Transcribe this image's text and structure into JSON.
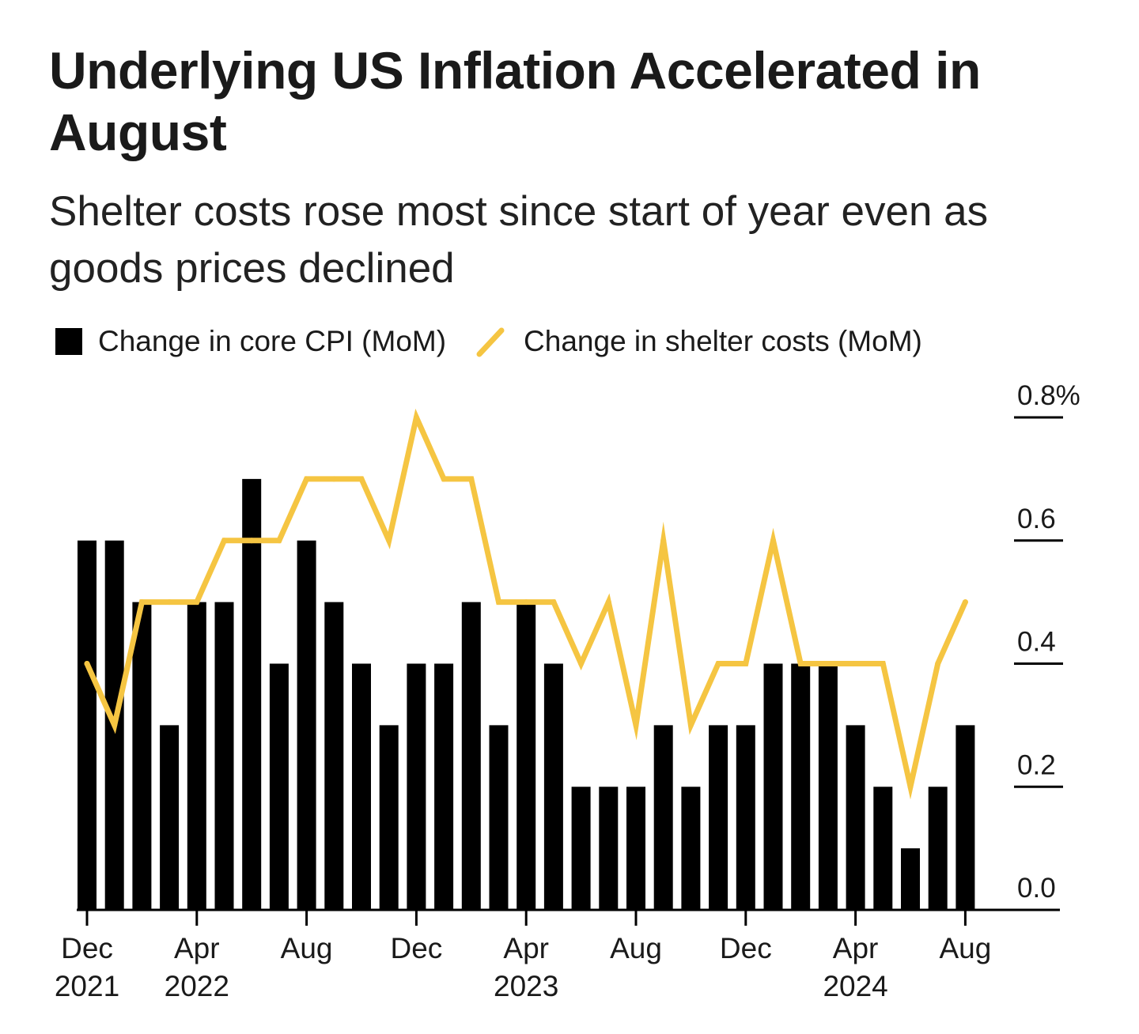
{
  "chart_data": {
    "type": "bar",
    "title": "Underlying US Inflation Accelerated in August",
    "subtitle": "Shelter costs rose most since start of year even as goods prices declined",
    "legend": [
      {
        "label": "Change in core CPI (MoM)",
        "color": "#000000",
        "kind": "bar"
      },
      {
        "label": "Change in shelter costs (MoM)",
        "color": "#f5c542",
        "kind": "line"
      }
    ],
    "categories": [
      "2021-12",
      "2022-01",
      "2022-02",
      "2022-03",
      "2022-04",
      "2022-05",
      "2022-06",
      "2022-07",
      "2022-08",
      "2022-09",
      "2022-10",
      "2022-11",
      "2022-12",
      "2023-01",
      "2023-02",
      "2023-03",
      "2023-04",
      "2023-05",
      "2023-06",
      "2023-07",
      "2023-08",
      "2023-09",
      "2023-10",
      "2023-11",
      "2023-12",
      "2024-01",
      "2024-02",
      "2024-03",
      "2024-04",
      "2024-05",
      "2024-06",
      "2024-07",
      "2024-08"
    ],
    "series": [
      {
        "name": "Change in core CPI (MoM)",
        "type": "bar",
        "color": "#000000",
        "values": [
          0.6,
          0.6,
          0.5,
          0.3,
          0.5,
          0.5,
          0.7,
          0.4,
          0.6,
          0.5,
          0.4,
          0.3,
          0.4,
          0.4,
          0.5,
          0.3,
          0.5,
          0.4,
          0.2,
          0.2,
          0.2,
          0.3,
          0.2,
          0.3,
          0.3,
          0.4,
          0.4,
          0.4,
          0.3,
          0.2,
          0.1,
          0.2,
          0.3
        ]
      },
      {
        "name": "Change in shelter costs (MoM)",
        "type": "line",
        "color": "#f5c542",
        "values": [
          0.4,
          0.3,
          0.5,
          0.5,
          0.5,
          0.6,
          0.6,
          0.6,
          0.7,
          0.7,
          0.7,
          0.6,
          0.8,
          0.7,
          0.7,
          0.5,
          0.5,
          0.5,
          0.4,
          0.5,
          0.3,
          0.6,
          0.3,
          0.4,
          0.4,
          0.6,
          0.4,
          0.4,
          0.4,
          0.4,
          0.2,
          0.4,
          0.5
        ]
      }
    ],
    "y_axis": {
      "min": 0,
      "max": 0.8,
      "ticks": [
        "0.0",
        "0.2",
        "0.4",
        "0.6",
        "0.8%"
      ],
      "tick_values": [
        0,
        0.2,
        0.4,
        0.6,
        0.8
      ],
      "position": "right"
    },
    "x_axis": {
      "ticks": [
        {
          "index": 0,
          "lines": [
            "Dec",
            "2021"
          ]
        },
        {
          "index": 4,
          "lines": [
            "Apr",
            "2022"
          ]
        },
        {
          "index": 8,
          "lines": [
            "Aug"
          ]
        },
        {
          "index": 12,
          "lines": [
            "Dec"
          ]
        },
        {
          "index": 16,
          "lines": [
            "Apr",
            "2023"
          ]
        },
        {
          "index": 20,
          "lines": [
            "Aug"
          ]
        },
        {
          "index": 24,
          "lines": [
            "Dec"
          ]
        },
        {
          "index": 28,
          "lines": [
            "Apr",
            "2024"
          ]
        },
        {
          "index": 32,
          "lines": [
            "Aug"
          ]
        }
      ]
    },
    "grid": false,
    "legend_position": "top-left"
  }
}
